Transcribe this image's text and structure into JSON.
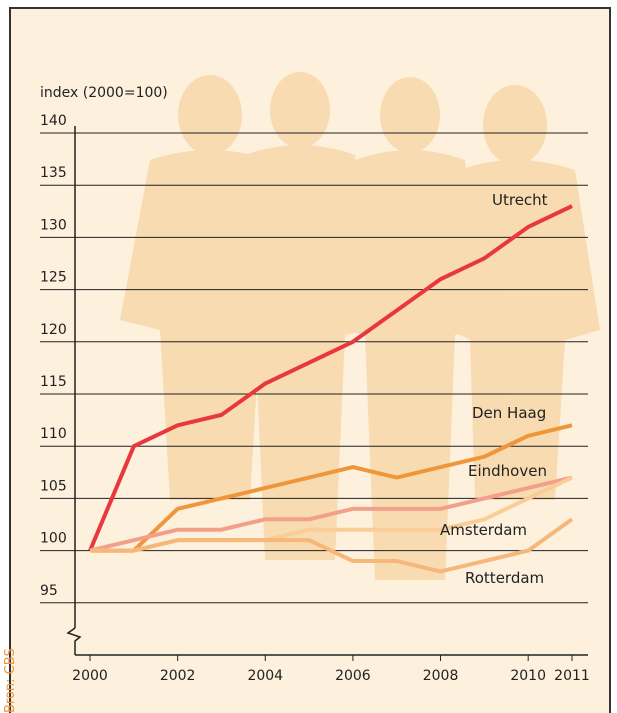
{
  "chart_data": {
    "type": "line",
    "y_label": "index (2000=100)",
    "source": "Bron: CBS",
    "x": [
      2000,
      2001,
      2002,
      2003,
      2004,
      2005,
      2006,
      2007,
      2008,
      2009,
      2010,
      2011
    ],
    "xlim": [
      2000,
      2011
    ],
    "xticks": [
      2000,
      2002,
      2004,
      2006,
      2008,
      2010,
      2011
    ],
    "ylim": [
      90,
      140
    ],
    "yticks": [
      95,
      100,
      105,
      110,
      115,
      120,
      125,
      130,
      135,
      140
    ],
    "grid": true,
    "series": [
      {
        "name": "Utrecht",
        "color": "#e8383d",
        "values": [
          100,
          110,
          112,
          113,
          116,
          118,
          120,
          123,
          126,
          128,
          131,
          133
        ]
      },
      {
        "name": "Den Haag",
        "color": "#f0963a",
        "values": [
          100,
          100,
          104,
          105,
          106,
          107,
          108,
          107,
          108,
          109,
          111,
          112
        ]
      },
      {
        "name": "Eindhoven",
        "color": "#f2a08a",
        "values": [
          100,
          101,
          102,
          102,
          103,
          103,
          104,
          104,
          104,
          105,
          106,
          107
        ]
      },
      {
        "name": "Amsterdam",
        "color": "#f9cd95",
        "values": [
          100,
          100,
          101,
          101,
          101,
          102,
          102,
          102,
          102,
          103,
          105,
          107
        ]
      },
      {
        "name": "Rotterdam",
        "color": "#f5b77a",
        "values": [
          100,
          100,
          101,
          101,
          101,
          101,
          99,
          99,
          98,
          99,
          100,
          103
        ]
      }
    ]
  }
}
